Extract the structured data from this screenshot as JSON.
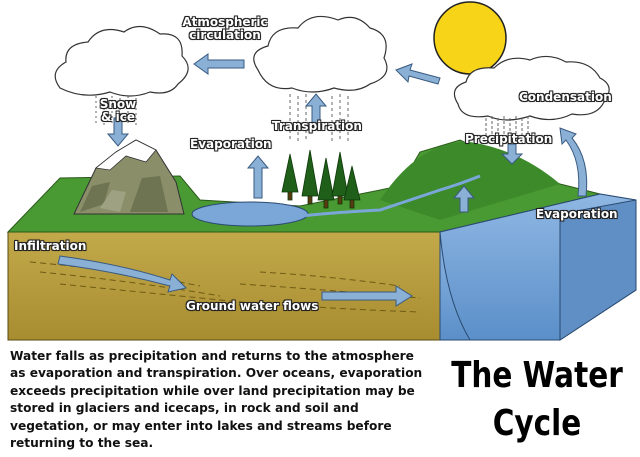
{
  "labels": {
    "atmospheric_circulation": "Atmospheric\ncirculation",
    "snow_ice": "Snow\n& ice",
    "transpiration": "Transpiration",
    "evaporation_land": "Evaporation",
    "condensation": "Condensation",
    "precipitation": "Precipitation",
    "evaporation_ocean": "Evaporation",
    "infiltration": "Infiltration",
    "ground_water_flows": "Ground water flows"
  },
  "caption": "Water falls as precipitation and returns to the atmosphere as evaporation and transpiration. Over oceans, evaporation exceeds precipitation while over land precipitation may be stored in glaciers and icecaps, in rock and soil and vegetation, or may enter into lakes and streams before returning to the sea.",
  "title": "The Water Cycle",
  "colors": {
    "sun": "#f7d417",
    "grass": "#3f8a2c",
    "soil": "#b49a3a",
    "ocean": "#6f9fd3",
    "arrow": "#8ab0d6"
  }
}
